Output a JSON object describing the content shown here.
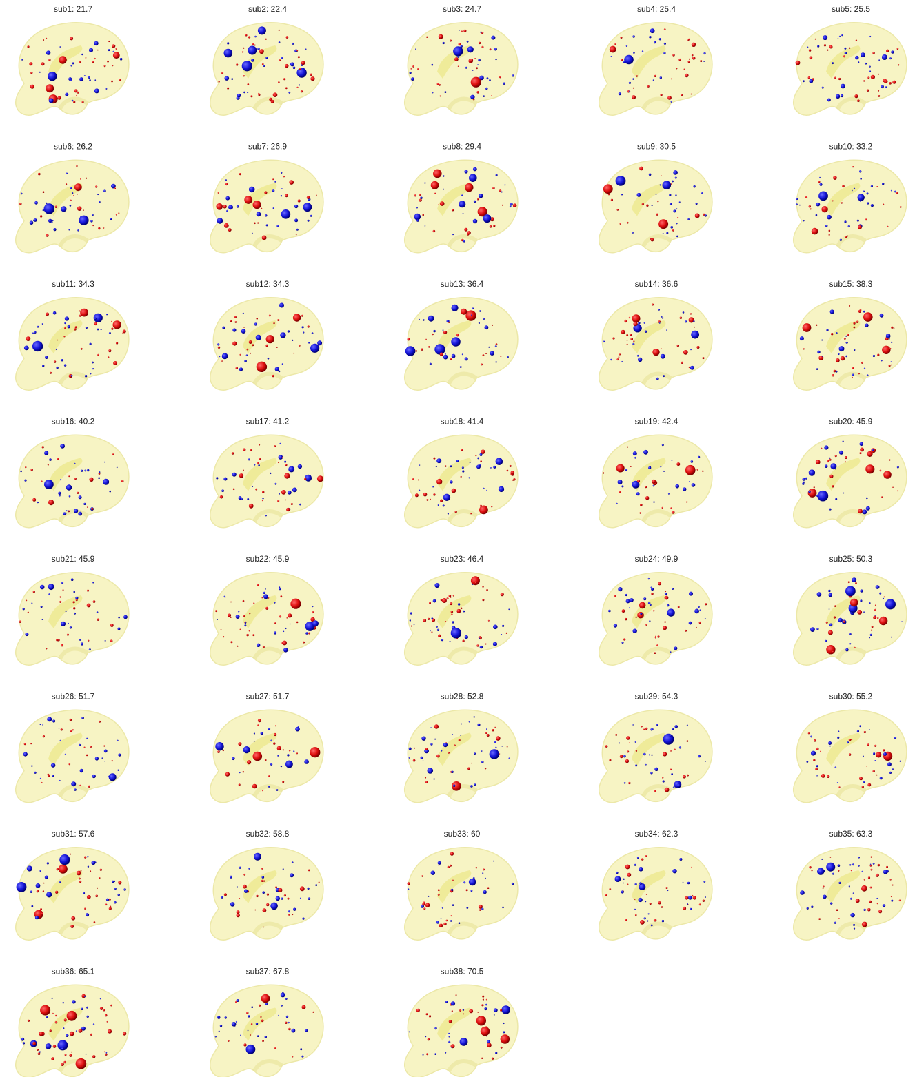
{
  "panels": [
    {
      "title": "sub1: 21.7"
    },
    {
      "title": "sub2: 22.4"
    },
    {
      "title": "sub3: 24.7"
    },
    {
      "title": "sub4: 25.4"
    },
    {
      "title": "sub5: 25.5"
    },
    {
      "title": "sub6: 26.2"
    },
    {
      "title": "sub7: 26.9"
    },
    {
      "title": "sub8: 29.4"
    },
    {
      "title": "sub9: 30.5"
    },
    {
      "title": "sub10: 33.2"
    },
    {
      "title": "sub11: 34.3"
    },
    {
      "title": "sub12: 34.3"
    },
    {
      "title": "sub13: 36.4"
    },
    {
      "title": "sub14: 36.6"
    },
    {
      "title": "sub15: 38.3"
    },
    {
      "title": "sub16: 40.2"
    },
    {
      "title": "sub17: 41.2"
    },
    {
      "title": "sub18: 41.4"
    },
    {
      "title": "sub19: 42.4"
    },
    {
      "title": "sub20: 45.9"
    },
    {
      "title": "sub21: 45.9"
    },
    {
      "title": "sub22: 45.9"
    },
    {
      "title": "sub23: 46.4"
    },
    {
      "title": "sub24: 49.9"
    },
    {
      "title": "sub25: 50.3"
    },
    {
      "title": "sub26: 51.7"
    },
    {
      "title": "sub27: 51.7"
    },
    {
      "title": "sub28: 52.8"
    },
    {
      "title": "sub29: 54.3"
    },
    {
      "title": "sub30: 55.2"
    },
    {
      "title": "sub31: 57.6"
    },
    {
      "title": "sub32: 58.8"
    },
    {
      "title": "sub33: 60"
    },
    {
      "title": "sub34: 62.3"
    },
    {
      "title": "sub35: 63.3"
    },
    {
      "title": "sub36: 65.1"
    },
    {
      "title": "sub37: 67.8"
    },
    {
      "title": "sub38: 70.5"
    }
  ]
}
